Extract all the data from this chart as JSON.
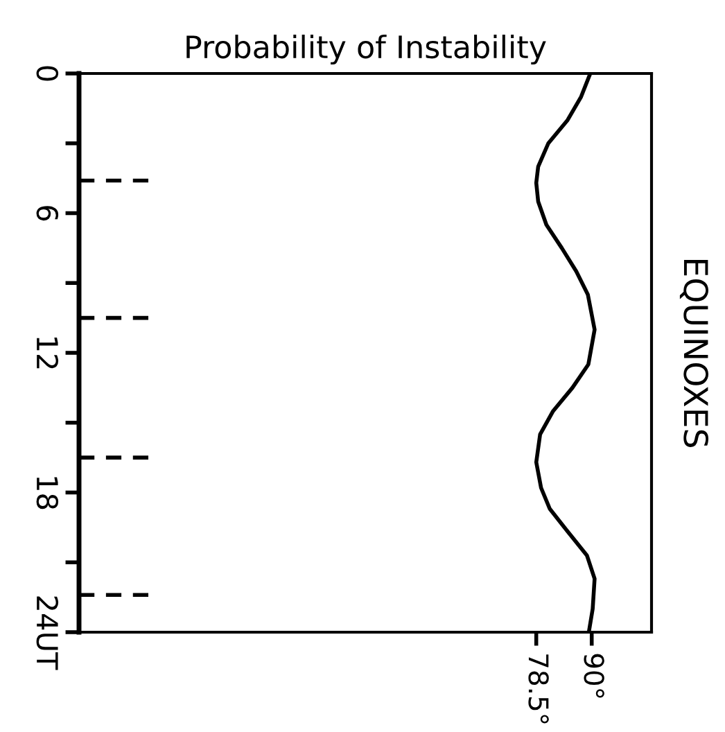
{
  "chart_data": {
    "type": "line",
    "title": "Probability of Instability",
    "y2label": "EQUINOXES",
    "series": [
      {
        "color": "#000000",
        "x": [
          89.7,
          87.8,
          85.0,
          81.0,
          78.9,
          78.5,
          78.9,
          80.6,
          83.8,
          86.8,
          89.2,
          90.6,
          89.3,
          86.0,
          82.0,
          79.3,
          78.5,
          79.5,
          81.3,
          85.1,
          89.0,
          90.6,
          90.2,
          89.4
        ],
        "values": [
          0,
          1,
          2,
          3,
          4,
          4.7,
          5.5,
          6.5,
          7.5,
          8.5,
          9.5,
          11,
          12.5,
          13.5,
          14.5,
          15.5,
          16.7,
          17.8,
          18.7,
          19.7,
          20.7,
          21.7,
          23,
          24
        ]
      }
    ],
    "ylim": [
      24,
      0
    ],
    "yticks": [
      0,
      {
        "value": 3,
        "label": null
      },
      6,
      {
        "value": 9,
        "label": null
      },
      12,
      {
        "value": 15,
        "label": null
      },
      18,
      {
        "value": 21,
        "label": null
      },
      {
        "value": 24,
        "label": "24UT"
      }
    ],
    "xlim": [
      -16.3,
      102.4
    ],
    "xticks": [
      {
        "value": 78.5,
        "label": "78.5°"
      },
      {
        "value": 90,
        "label": "90°"
      }
    ],
    "ref_lines": [
      {
        "axis": "y",
        "value": 4.6,
        "line_style": "dashed"
      },
      {
        "axis": "y",
        "value": 10.5,
        "line_style": "dashed"
      },
      {
        "axis": "y",
        "value": 16.5,
        "line_style": "dashed"
      },
      {
        "axis": "y",
        "value": 22.4,
        "line_style": "dashed"
      }
    ],
    "grid": false,
    "legend": false,
    "marker": "none",
    "line_style": "solid"
  }
}
